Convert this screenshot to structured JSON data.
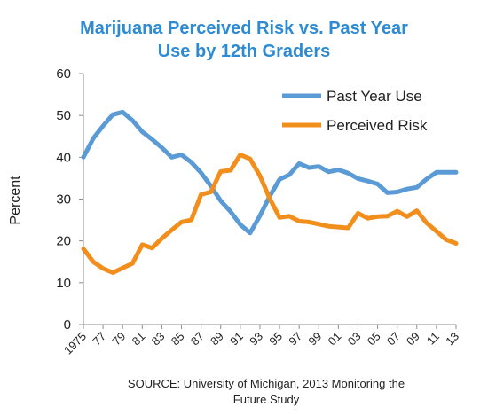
{
  "chart_data": {
    "type": "line",
    "title": [
      "Marijuana Perceived Risk vs. Past Year",
      "Use by 12th Graders"
    ],
    "ylabel": "Percent",
    "ylim": [
      0,
      60
    ],
    "yticks": [
      0,
      10,
      20,
      30,
      40,
      50,
      60
    ],
    "xlim": [
      1975,
      2013
    ],
    "x_tick_values": [
      1975,
      1977,
      1979,
      1981,
      1983,
      1985,
      1987,
      1989,
      1991,
      1993,
      1995,
      1997,
      1999,
      2001,
      2003,
      2005,
      2007,
      2009,
      2011,
      2013
    ],
    "x_tick_labels": [
      "1975",
      "77",
      "79",
      "81",
      "83",
      "85",
      "87",
      "89",
      "91",
      "93",
      "95",
      "97",
      "99",
      "01",
      "03",
      "05",
      "07",
      "09",
      "11",
      "13"
    ],
    "legend": "top-right",
    "x": [
      1975,
      1976,
      1977,
      1978,
      1979,
      1980,
      1981,
      1982,
      1983,
      1984,
      1985,
      1986,
      1987,
      1988,
      1989,
      1990,
      1991,
      1992,
      1993,
      1994,
      1995,
      1996,
      1997,
      1998,
      1999,
      2000,
      2001,
      2002,
      2003,
      2004,
      2005,
      2006,
      2007,
      2008,
      2009,
      2010,
      2011,
      2012,
      2013
    ],
    "series": [
      {
        "name": "Past Year Use",
        "color": "#5B9BD5",
        "values": [
          40.0,
          44.5,
          47.5,
          50.2,
          50.8,
          48.8,
          46.1,
          44.3,
          42.3,
          40.0,
          40.6,
          38.8,
          36.3,
          33.1,
          29.6,
          27.0,
          23.9,
          21.9,
          26.0,
          30.7,
          34.7,
          35.8,
          38.5,
          37.5,
          37.8,
          36.5,
          37.0,
          36.2,
          34.9,
          34.3,
          33.6,
          31.5,
          31.7,
          32.4,
          32.8,
          34.8,
          36.4,
          36.4,
          36.4
        ]
      },
      {
        "name": "Perceived Risk",
        "color": "#F28E1C",
        "values": [
          18.1,
          15.0,
          13.4,
          12.4,
          13.5,
          14.6,
          19.1,
          18.3,
          20.6,
          22.6,
          24.5,
          25.0,
          31.1,
          31.7,
          36.6,
          36.9,
          40.6,
          39.6,
          35.6,
          30.1,
          25.6,
          25.9,
          24.7,
          24.5,
          24.0,
          23.5,
          23.3,
          23.1,
          26.6,
          25.4,
          25.8,
          25.9,
          27.1,
          25.8,
          27.2,
          24.3,
          22.3,
          20.3,
          19.4
        ]
      }
    ],
    "source": [
      "SOURCE: University of Michigan, 2013 Monitoring the",
      "Future Study"
    ]
  }
}
